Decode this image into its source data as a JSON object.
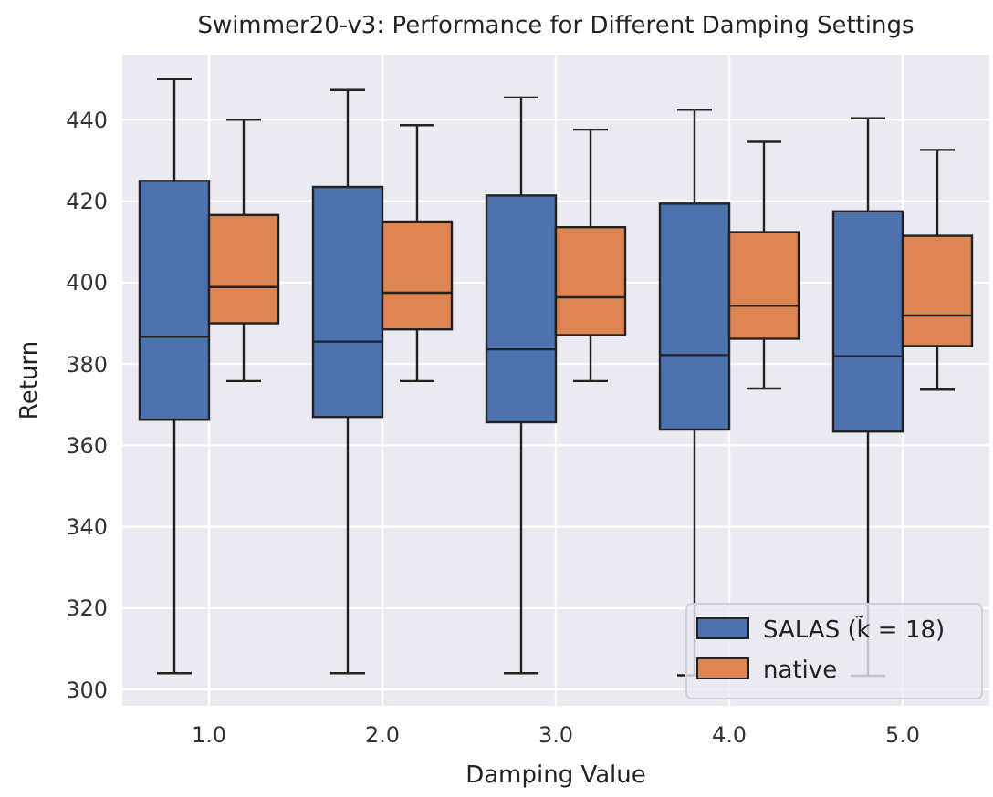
{
  "chart_data": {
    "type": "box",
    "title": "Swimmer20-v3: Performance for Different Damping Settings",
    "xlabel": "Damping Value",
    "ylabel": "Return",
    "categories": [
      "1.0",
      "2.0",
      "3.0",
      "4.0",
      "5.0"
    ],
    "ylim": [
      296,
      456
    ],
    "yticks": [
      300,
      320,
      340,
      360,
      380,
      400,
      420,
      440
    ],
    "grid": true,
    "legend": "bottom right",
    "series": [
      {
        "name": "SALAS (k̃ = 18)",
        "color": "#4c72b0",
        "boxes": [
          {
            "low": 304,
            "q1": 366.3,
            "median": 386.7,
            "q3": 425,
            "high": 450
          },
          {
            "low": 304,
            "q1": 367,
            "median": 385.5,
            "q3": 423.5,
            "high": 447.3
          },
          {
            "low": 304,
            "q1": 365.7,
            "median": 383.6,
            "q3": 421.4,
            "high": 445.5
          },
          {
            "low": 303.5,
            "q1": 363.9,
            "median": 382.2,
            "q3": 419.4,
            "high": 442.5
          },
          {
            "low": 303.4,
            "q1": 363.4,
            "median": 381.9,
            "q3": 417.5,
            "high": 440.4
          }
        ]
      },
      {
        "name": "native",
        "color": "#dd8452",
        "boxes": [
          {
            "low": 375.8,
            "q1": 390,
            "median": 398.9,
            "q3": 416.6,
            "high": 440
          },
          {
            "low": 375.8,
            "q1": 388.5,
            "median": 397.5,
            "q3": 415,
            "high": 438.7
          },
          {
            "low": 375.8,
            "q1": 387.1,
            "median": 396.4,
            "q3": 413.6,
            "high": 437.6
          },
          {
            "low": 374,
            "q1": 386.2,
            "median": 394.3,
            "q3": 412.4,
            "high": 434.6
          },
          {
            "low": 373.7,
            "q1": 384.4,
            "median": 391.9,
            "q3": 411.5,
            "high": 432.6
          }
        ]
      }
    ]
  }
}
